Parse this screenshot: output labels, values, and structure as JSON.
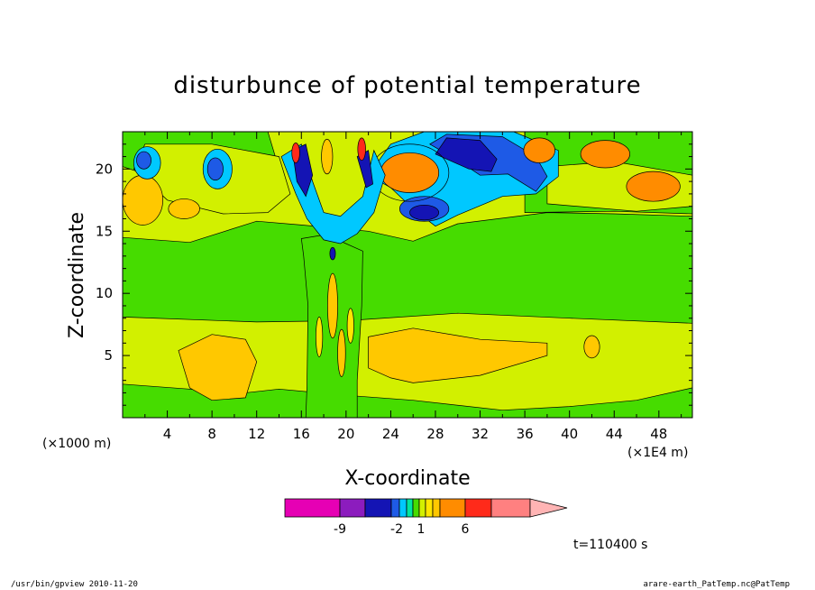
{
  "chart_data": {
    "type": "heatmap",
    "title": "disturbunce of potential temperature",
    "xlabel": "X-coordinate",
    "ylabel": "Z-coordinate",
    "x_unit": "(×1000 m)",
    "x_scale_note": "(×1E4 m)",
    "xlim": [
      0,
      51
    ],
    "ylim": [
      0,
      23
    ],
    "x_ticks": [
      "4",
      "8",
      "12",
      "16",
      "20",
      "24",
      "28",
      "32",
      "36",
      "40",
      "44",
      "48"
    ],
    "y_ticks": [
      "5",
      "10",
      "15",
      "20"
    ],
    "colorbar": {
      "tick_labels": [
        "-9",
        "-2",
        "1",
        "6"
      ],
      "colors": [
        "#e600b4",
        "#8c1cbe",
        "#1414b4",
        "#1e5ae6",
        "#00c8ff",
        "#00e6a0",
        "#46dc00",
        "#d2f000",
        "#ffe600",
        "#ffc800",
        "#ff8c00",
        "#ff2a1a",
        "#ff8080",
        "#ffb4b4"
      ]
    },
    "field_colors": {
      "deep_blue": "#1414b4",
      "blue": "#1e5ae6",
      "cyan": "#00c8ff",
      "green": "#46dc00",
      "lime": "#d2f000",
      "yellow": "#ffe600",
      "gold": "#ffc800",
      "orange": "#ff8c00",
      "red": "#ff2a1a"
    },
    "time_label": "t=110400 s"
  },
  "footer": {
    "left": "/usr/bin/gpview  2010-11-20",
    "right": "arare-earth_PatTemp.nc@PatTemp"
  }
}
